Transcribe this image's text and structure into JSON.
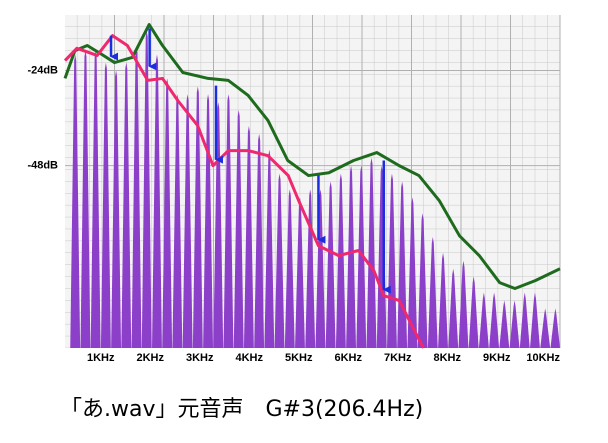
{
  "chart_data": {
    "type": "spectrum",
    "caption": "「あ.wav」元音声　G#3(206.4Hz)",
    "xlim": [
      0,
      10
    ],
    "ylim": [
      -94,
      -10
    ],
    "xticks": [
      {
        "value": 1,
        "label": "1KHz"
      },
      {
        "value": 2,
        "label": "2KHz"
      },
      {
        "value": 3,
        "label": "3KHz"
      },
      {
        "value": 4,
        "label": "4KHz"
      },
      {
        "value": 5,
        "label": "5KHz"
      },
      {
        "value": 6,
        "label": "6KHz"
      },
      {
        "value": 7,
        "label": "7KHz"
      },
      {
        "value": 8,
        "label": "8KHz"
      },
      {
        "value": 9,
        "label": "9KHz"
      },
      {
        "value": 10,
        "label": "10KHz"
      }
    ],
    "yticks": [
      {
        "value": -24,
        "label": "-24dB"
      },
      {
        "value": -48,
        "label": "-48dB"
      }
    ],
    "grid": true,
    "spectrum": {
      "color": "#8c3fc8",
      "x": [
        0.206,
        0.413,
        0.619,
        0.826,
        1.032,
        1.238,
        1.445,
        1.651,
        1.858,
        2.064,
        2.27,
        2.477,
        2.683,
        2.89,
        3.096,
        3.302,
        3.509,
        3.715,
        3.922,
        4.128,
        4.334,
        4.541,
        4.747,
        4.954,
        5.16,
        5.366,
        5.573,
        5.779,
        5.986,
        6.192,
        6.398,
        6.605,
        6.811,
        7.018,
        7.224,
        7.43,
        7.637,
        7.843,
        8.05,
        8.256,
        8.462,
        8.669,
        8.875,
        9.082,
        9.288,
        9.494,
        9.701,
        9.907
      ],
      "values": [
        -20,
        -19,
        -19,
        -22,
        -24,
        -22,
        -18,
        -14,
        -20,
        -26,
        -30,
        -30,
        -28,
        -30,
        -32,
        -30,
        -34,
        -38,
        -40,
        -44,
        -50,
        -54,
        -56,
        -54,
        -54,
        -52,
        -50,
        -48,
        -48,
        -46,
        -48,
        -50,
        -52,
        -56,
        -60,
        -66,
        -70,
        -74,
        -72,
        -76,
        -80,
        -80,
        -82,
        -82,
        -80,
        -80,
        -84,
        -84
      ]
    },
    "series": [
      {
        "color": "#1e6b1e",
        "x": [
          0,
          0.2,
          0.45,
          0.75,
          1.0,
          1.36,
          1.7,
          1.97,
          2.38,
          2.89,
          3.3,
          3.7,
          4.1,
          4.5,
          4.92,
          5.33,
          5.83,
          6.3,
          6.75,
          7.15,
          7.56,
          7.97,
          8.37,
          8.78,
          9.09,
          9.5,
          10
        ],
        "values": [
          -26,
          -19,
          -17.7,
          -20,
          -22,
          -20.7,
          -12.4,
          -17.7,
          -24.5,
          -26,
          -26.5,
          -30.3,
          -36.6,
          -46.7,
          -50.5,
          -49.8,
          -46.7,
          -44.7,
          -48,
          -50.5,
          -56.8,
          -65.7,
          -70.7,
          -77.5,
          -79,
          -77,
          -74
        ]
      },
      {
        "color": "#f0286e",
        "x": [
          0,
          0.24,
          0.65,
          0.96,
          1.26,
          1.67,
          1.97,
          2.28,
          2.68,
          2.99,
          3.3,
          3.7,
          4.1,
          4.51,
          4.72,
          5.12,
          5.53,
          5.93,
          6.24,
          6.44,
          6.75,
          7.24
        ],
        "values": [
          -21.5,
          -18.4,
          -20.2,
          -15.2,
          -17.7,
          -26.5,
          -26,
          -31.6,
          -37.9,
          -48,
          -44.2,
          -44.2,
          -45.5,
          -50.5,
          -56.8,
          -68.2,
          -70.7,
          -69.4,
          -74.5,
          -80.8,
          -82,
          -94
        ]
      }
    ],
    "arrows": {
      "color": "#1a2ee0",
      "x": [
        0.93,
        1.71,
        3.05,
        5.12,
        6.44
      ],
      "from": [
        -15.2,
        -13.4,
        -27.8,
        -50.5,
        -46.7
      ],
      "to": [
        -22,
        -24.5,
        -48,
        -68.2,
        -80.8
      ]
    }
  }
}
